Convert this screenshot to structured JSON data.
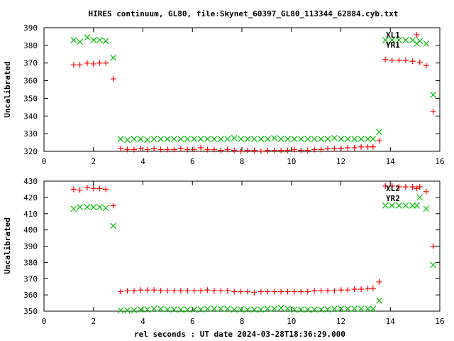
{
  "chart_data": [
    {
      "type": "scatter",
      "title": "HIRES continuum, GL80, file:Skynet_60397_GL80_113344_62884.cyb.txt",
      "xlabel": "",
      "ylabel": "Uncalibrated",
      "xlim": [
        0,
        16
      ],
      "ylim": [
        320,
        390
      ],
      "xticks": [
        "0",
        "2",
        "4",
        "6",
        "8",
        "10",
        "12",
        "14",
        "16"
      ],
      "yticks": [
        "320",
        "330",
        "340",
        "350",
        "360",
        "370",
        "380",
        "390"
      ],
      "legend_position": "top-right",
      "series": [
        {
          "name": "XL1",
          "marker": "plus",
          "color": "#ff0000",
          "x": [
            1.2,
            1.45,
            1.75,
            2.0,
            2.25,
            2.5,
            2.8,
            3.1,
            3.37,
            3.64,
            3.91,
            4.18,
            4.45,
            4.72,
            4.99,
            5.26,
            5.53,
            5.8,
            6.07,
            6.34,
            6.61,
            6.88,
            7.15,
            7.42,
            7.69,
            7.96,
            8.23,
            8.5,
            8.77,
            9.04,
            9.31,
            9.58,
            9.85,
            10.12,
            10.39,
            10.66,
            10.93,
            11.2,
            11.47,
            11.74,
            12.01,
            12.28,
            12.55,
            12.82,
            13.09,
            13.3,
            13.55,
            13.8,
            14.07,
            14.35,
            14.62,
            14.9,
            15.07,
            15.19,
            15.45,
            15.73
          ],
          "y": [
            369,
            369,
            370,
            369.5,
            370,
            370,
            361,
            321.5,
            321,
            321,
            321.5,
            321,
            321.5,
            321,
            321,
            321,
            321.5,
            321,
            321,
            322,
            321,
            321,
            320.5,
            321,
            320.5,
            320,
            320.5,
            320.5,
            320,
            320.5,
            320.5,
            320.5,
            320.5,
            321,
            320.5,
            320.5,
            321,
            321,
            321.5,
            321.5,
            321.5,
            322,
            322,
            322.5,
            322.5,
            322.5,
            326,
            372,
            371.5,
            371.5,
            371.5,
            371,
            386,
            370.5,
            368.5,
            342.5
          ]
        },
        {
          "name": "YR1",
          "marker": "cross",
          "color": "#00c000",
          "x": [
            1.2,
            1.45,
            1.75,
            2.0,
            2.25,
            2.5,
            2.8,
            3.1,
            3.37,
            3.64,
            3.91,
            4.18,
            4.45,
            4.72,
            4.99,
            5.26,
            5.53,
            5.8,
            6.07,
            6.34,
            6.61,
            6.88,
            7.15,
            7.42,
            7.69,
            7.96,
            8.23,
            8.5,
            8.77,
            9.04,
            9.31,
            9.58,
            9.85,
            10.12,
            10.39,
            10.66,
            10.93,
            11.2,
            11.47,
            11.74,
            12.01,
            12.28,
            12.55,
            12.82,
            13.09,
            13.3,
            13.55,
            13.8,
            14.07,
            14.35,
            14.62,
            14.9,
            15.07,
            15.19,
            15.45,
            15.73
          ],
          "y": [
            383,
            382,
            384.5,
            383,
            383,
            382.5,
            373,
            327,
            326.5,
            327,
            327,
            326.5,
            327,
            327,
            327,
            327,
            327,
            327,
            327,
            327,
            327,
            327,
            327,
            327,
            327.5,
            327,
            327,
            327,
            327,
            327,
            327.5,
            327,
            327,
            327,
            327,
            327,
            327,
            327,
            327,
            327.5,
            327,
            327,
            327,
            327,
            327,
            327,
            331,
            383,
            383,
            383,
            383,
            383,
            381,
            382.5,
            381,
            352
          ]
        }
      ]
    },
    {
      "type": "scatter",
      "title": "",
      "xlabel": "rel seconds : UT date 2024-03-28T18:36:29.000",
      "ylabel": "Uncalibrated",
      "xlim": [
        0,
        16
      ],
      "ylim": [
        350,
        430
      ],
      "xticks": [
        "0",
        "2",
        "4",
        "6",
        "8",
        "10",
        "12",
        "14",
        "16"
      ],
      "yticks": [
        "350",
        "360",
        "370",
        "380",
        "390",
        "400",
        "410",
        "420",
        "430"
      ],
      "legend_position": "top-right",
      "series": [
        {
          "name": "XL2",
          "marker": "plus",
          "color": "#ff0000",
          "x": [
            1.2,
            1.45,
            1.75,
            2.0,
            2.25,
            2.5,
            2.8,
            3.1,
            3.37,
            3.64,
            3.91,
            4.18,
            4.45,
            4.72,
            4.99,
            5.26,
            5.53,
            5.8,
            6.07,
            6.34,
            6.61,
            6.88,
            7.15,
            7.42,
            7.69,
            7.96,
            8.23,
            8.5,
            8.77,
            9.04,
            9.31,
            9.58,
            9.85,
            10.12,
            10.39,
            10.66,
            10.93,
            11.2,
            11.47,
            11.74,
            12.01,
            12.28,
            12.55,
            12.82,
            13.09,
            13.3,
            13.55,
            13.8,
            14.07,
            14.35,
            14.62,
            14.9,
            15.07,
            15.19,
            15.45,
            15.73
          ],
          "y": [
            425,
            424.5,
            426,
            425.5,
            425.5,
            425,
            415,
            362,
            362.5,
            362.5,
            363,
            363,
            363,
            362.5,
            362.5,
            362.5,
            362.5,
            362.5,
            362.5,
            362.5,
            363,
            362.5,
            362.5,
            362.5,
            362,
            362,
            362,
            361.5,
            362,
            362,
            362,
            362,
            362,
            362,
            362,
            362,
            362.5,
            362.5,
            362.5,
            362.5,
            363,
            363,
            363.5,
            363.5,
            364,
            364,
            368,
            427,
            427,
            426.5,
            426.5,
            426.5,
            425.5,
            426.5,
            423.5,
            390
          ]
        },
        {
          "name": "YR2",
          "marker": "cross",
          "color": "#00c000",
          "x": [
            1.2,
            1.45,
            1.75,
            2.0,
            2.25,
            2.5,
            2.8,
            3.1,
            3.37,
            3.64,
            3.91,
            4.18,
            4.45,
            4.72,
            4.99,
            5.26,
            5.53,
            5.8,
            6.07,
            6.34,
            6.61,
            6.88,
            7.15,
            7.42,
            7.69,
            7.96,
            8.23,
            8.5,
            8.77,
            9.04,
            9.31,
            9.58,
            9.85,
            10.12,
            10.39,
            10.66,
            10.93,
            11.2,
            11.47,
            11.74,
            12.01,
            12.28,
            12.55,
            12.82,
            13.09,
            13.3,
            13.55,
            13.8,
            14.07,
            14.35,
            14.62,
            14.9,
            15.07,
            15.19,
            15.45,
            15.73
          ],
          "y": [
            413,
            414,
            414,
            414,
            414,
            413.5,
            402.5,
            350.5,
            350.5,
            350.5,
            351,
            351,
            351.5,
            351.5,
            351,
            351,
            351,
            351,
            351,
            351,
            351.5,
            351.5,
            351.5,
            351.5,
            351,
            351,
            351,
            351,
            351,
            351.5,
            351.5,
            352,
            351.5,
            351,
            351,
            351,
            351,
            351,
            351,
            351.5,
            351.5,
            351.5,
            351.5,
            351.5,
            351.5,
            351.5,
            356.5,
            415,
            415,
            415,
            415,
            415,
            415,
            420,
            413,
            378.5
          ]
        }
      ]
    }
  ]
}
